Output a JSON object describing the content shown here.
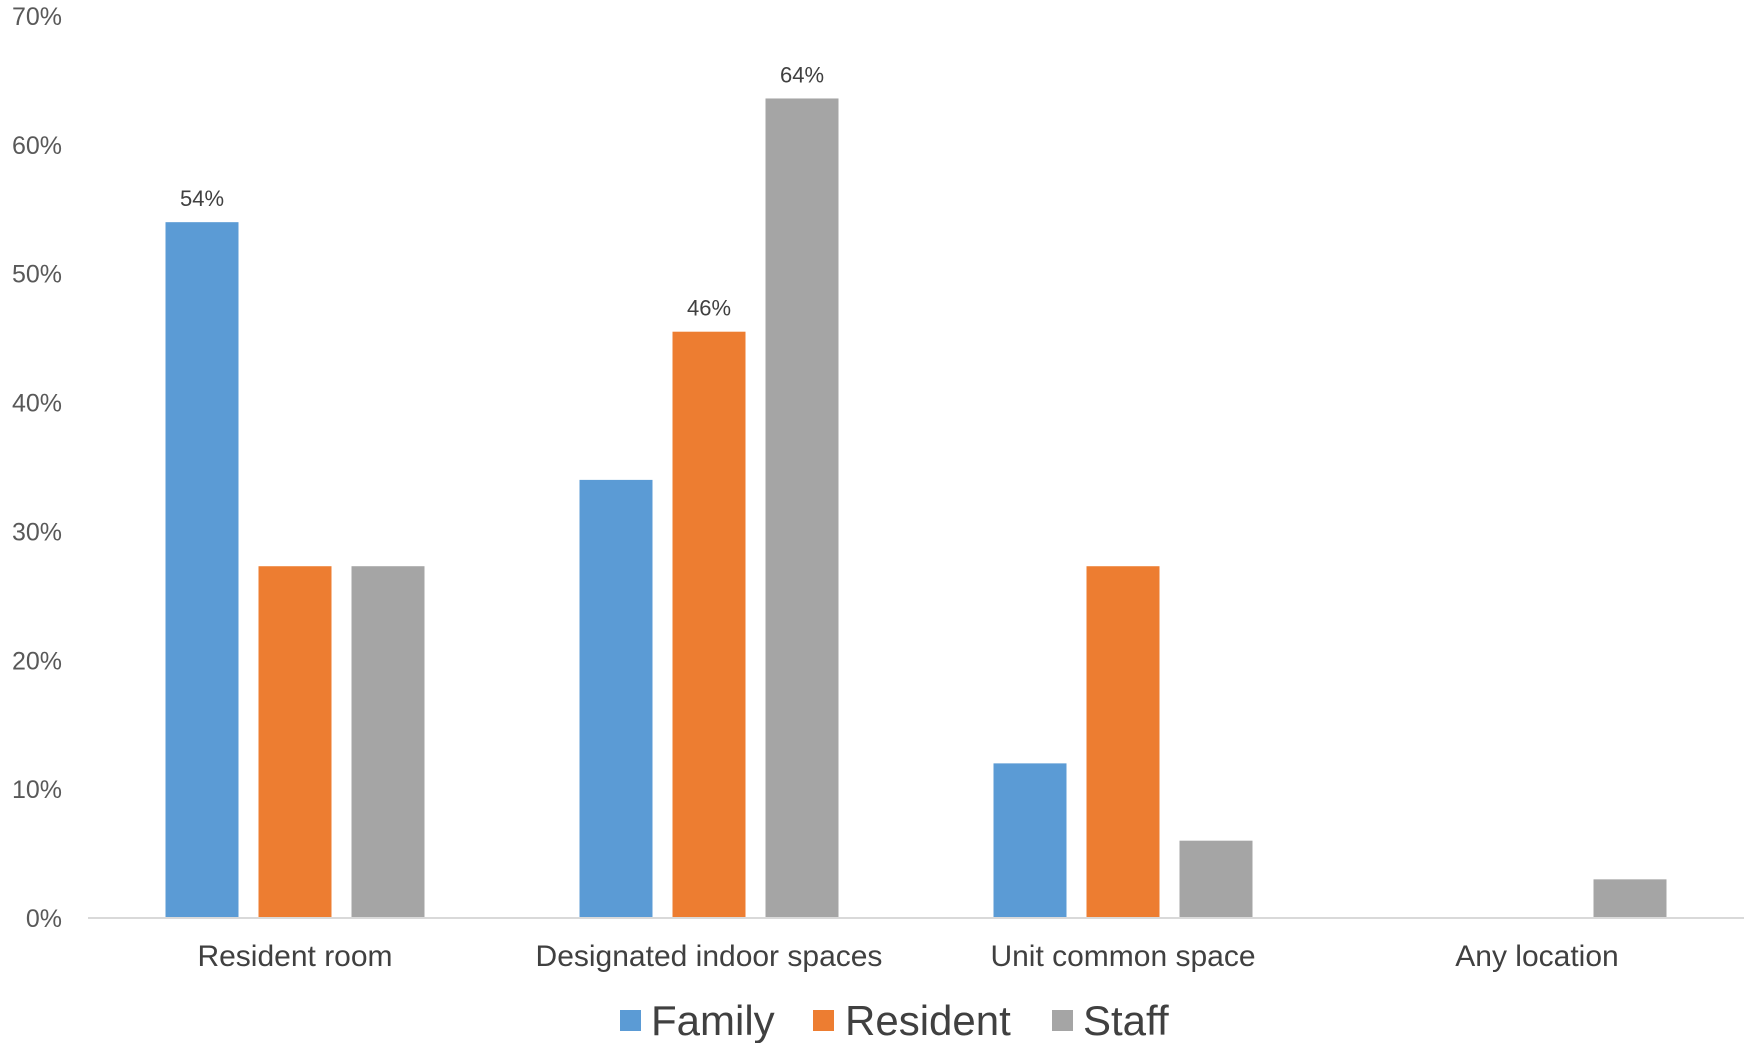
{
  "chart_data": {
    "type": "bar",
    "title": "",
    "xlabel": "",
    "ylabel": "",
    "ylim": [
      0,
      70
    ],
    "y_ticks": [
      0,
      10,
      20,
      30,
      40,
      50,
      60,
      70
    ],
    "y_tick_labels": [
      "0%",
      "10%",
      "20%",
      "30%",
      "40%",
      "50%",
      "60%",
      "70%"
    ],
    "grid": false,
    "legend_position": "bottom",
    "categories": [
      "Resident room",
      "Designated indoor spaces",
      "Unit common space",
      "Any location"
    ],
    "series": [
      {
        "name": "Family",
        "color": "#5b9bd5",
        "values": [
          54,
          34,
          12,
          0
        ],
        "data_labels": [
          "54%",
          null,
          null,
          null
        ]
      },
      {
        "name": "Resident",
        "color": "#ed7d31",
        "values": [
          27.3,
          45.5,
          27.3,
          0
        ],
        "data_labels": [
          null,
          "46%",
          null,
          null
        ]
      },
      {
        "name": "Staff",
        "color": "#a5a5a5",
        "values": [
          27.3,
          63.6,
          6,
          3
        ],
        "data_labels": [
          null,
          "64%",
          null,
          null
        ]
      }
    ]
  }
}
